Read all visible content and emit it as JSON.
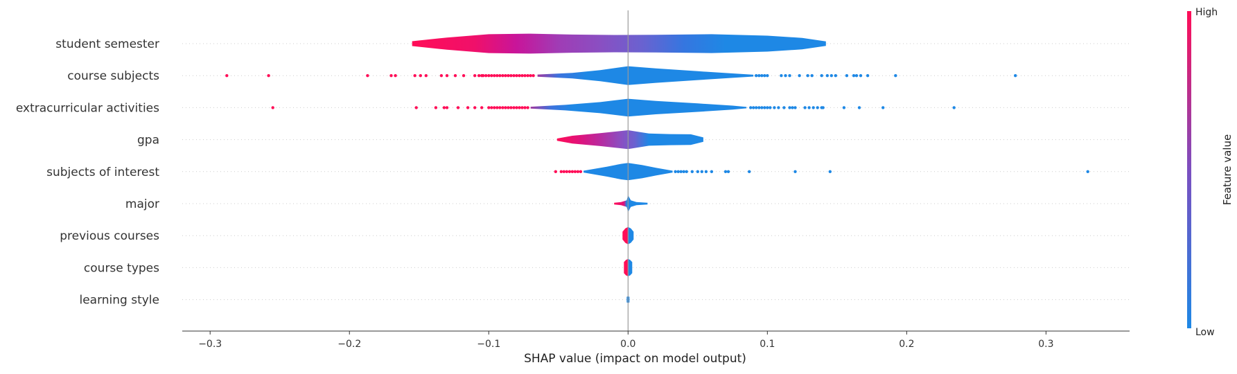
{
  "chart_data": {
    "type": "violin",
    "title": "",
    "xlabel": "SHAP value (impact on model output)",
    "xlim": [
      -0.32,
      0.36
    ],
    "xticks": [
      -0.3,
      -0.2,
      -0.1,
      0.0,
      0.1,
      0.2,
      0.3
    ],
    "xtick_labels": [
      "−0.3",
      "−0.2",
      "−0.1",
      "0.0",
      "0.1",
      "0.2",
      "0.3"
    ],
    "grid": "dotted-row-lines",
    "colorbar": {
      "title": "Feature value",
      "high_label": "High",
      "low_label": "Low",
      "high_color": "#ff0d57",
      "mid_color": "#7b4fc0",
      "low_color": "#1e88e5",
      "placement": "right"
    },
    "features": [
      {
        "name": "student semester",
        "range": [
          -0.155,
          0.142
        ],
        "profile": [
          [
            -0.155,
            0.22
          ],
          [
            -0.13,
            0.55
          ],
          [
            -0.1,
            0.85
          ],
          [
            -0.07,
            0.9
          ],
          [
            -0.04,
            0.82
          ],
          [
            -0.01,
            0.78
          ],
          [
            0.02,
            0.8
          ],
          [
            0.06,
            0.85
          ],
          [
            0.1,
            0.72
          ],
          [
            0.125,
            0.52
          ],
          [
            0.142,
            0.2
          ]
        ],
        "color_stops": [
          [
            -0.155,
            "#ff0d57"
          ],
          [
            -0.11,
            "#f0106a"
          ],
          [
            -0.08,
            "#c8159a"
          ],
          [
            -0.05,
            "#a03cb5"
          ],
          [
            -0.02,
            "#8a4fc2"
          ],
          [
            0.01,
            "#6a62d0"
          ],
          [
            0.04,
            "#3576e0"
          ],
          [
            0.07,
            "#1e88e5"
          ],
          [
            0.142,
            "#1e88e5"
          ]
        ],
        "points": []
      },
      {
        "name": "course subjects",
        "range": [
          -0.065,
          0.09
        ],
        "profile": [
          [
            -0.065,
            0.1
          ],
          [
            -0.04,
            0.25
          ],
          [
            -0.02,
            0.5
          ],
          [
            0.0,
            0.85
          ],
          [
            0.02,
            0.65
          ],
          [
            0.05,
            0.4
          ],
          [
            0.075,
            0.2
          ],
          [
            0.09,
            0.08
          ]
        ],
        "color_stops": [
          [
            -0.065,
            "#a0389f"
          ],
          [
            -0.05,
            "#3d72dd"
          ],
          [
            -0.03,
            "#1e88e5"
          ],
          [
            0.09,
            "#1e88e5"
          ]
        ],
        "points": [
          -0.288,
          -0.258,
          -0.187,
          -0.17,
          -0.167,
          -0.153,
          -0.149,
          -0.145,
          -0.134,
          -0.13,
          -0.124,
          -0.118,
          -0.11,
          -0.107,
          -0.105,
          -0.104,
          -0.102,
          -0.1,
          -0.098,
          -0.096,
          -0.094,
          -0.092,
          -0.09,
          -0.088,
          -0.086,
          -0.084,
          -0.082,
          -0.08,
          -0.078,
          -0.076,
          -0.074,
          -0.072,
          -0.07,
          -0.068,
          0.092,
          0.094,
          0.096,
          0.098,
          0.1,
          0.11,
          0.113,
          0.116,
          0.123,
          0.129,
          0.132,
          0.139,
          0.143,
          0.146,
          0.149,
          0.157,
          0.162,
          0.164,
          0.167,
          0.172,
          0.192,
          0.278
        ]
      },
      {
        "name": "extracurricular activities",
        "range": [
          -0.07,
          0.085
        ],
        "profile": [
          [
            -0.07,
            0.08
          ],
          [
            -0.045,
            0.25
          ],
          [
            -0.02,
            0.5
          ],
          [
            0.0,
            0.8
          ],
          [
            0.02,
            0.6
          ],
          [
            0.05,
            0.38
          ],
          [
            0.075,
            0.18
          ],
          [
            0.085,
            0.06
          ]
        ],
        "color_stops": [
          [
            -0.07,
            "#a0389f"
          ],
          [
            -0.055,
            "#3d72dd"
          ],
          [
            -0.04,
            "#1e88e5"
          ],
          [
            0.085,
            "#1e88e5"
          ]
        ],
        "points": [
          -0.255,
          -0.152,
          -0.138,
          -0.132,
          -0.13,
          -0.122,
          -0.115,
          -0.11,
          -0.105,
          -0.1,
          -0.098,
          -0.096,
          -0.094,
          -0.092,
          -0.09,
          -0.088,
          -0.086,
          -0.084,
          -0.082,
          -0.08,
          -0.078,
          -0.076,
          -0.074,
          -0.072,
          0.088,
          0.09,
          0.092,
          0.094,
          0.096,
          0.098,
          0.1,
          0.102,
          0.105,
          0.108,
          0.112,
          0.116,
          0.118,
          0.12,
          0.127,
          0.13,
          0.133,
          0.136,
          0.139,
          0.14,
          0.155,
          0.166,
          0.183,
          0.234
        ]
      },
      {
        "name": "gpa",
        "range": [
          -0.051,
          0.054
        ],
        "profile": [
          [
            -0.051,
            0.1
          ],
          [
            -0.04,
            0.35
          ],
          [
            -0.02,
            0.58
          ],
          [
            0.0,
            0.85
          ],
          [
            0.015,
            0.55
          ],
          [
            0.03,
            0.5
          ],
          [
            0.045,
            0.48
          ],
          [
            0.054,
            0.2
          ]
        ],
        "color_stops": [
          [
            -0.051,
            "#ff0d57"
          ],
          [
            -0.035,
            "#e0127a"
          ],
          [
            -0.02,
            "#b82a9f"
          ],
          [
            -0.005,
            "#8a4fc2"
          ],
          [
            0.005,
            "#6a62d0"
          ],
          [
            0.015,
            "#1e88e5"
          ],
          [
            0.054,
            "#1e88e5"
          ]
        ],
        "points": []
      },
      {
        "name": "subjects of interest",
        "range": [
          -0.032,
          0.032
        ],
        "profile": [
          [
            -0.032,
            0.08
          ],
          [
            -0.015,
            0.45
          ],
          [
            -0.005,
            0.7
          ],
          [
            0.0,
            0.78
          ],
          [
            0.01,
            0.6
          ],
          [
            0.02,
            0.35
          ],
          [
            0.032,
            0.08
          ]
        ],
        "color_stops": [
          [
            -0.032,
            "#1e88e5"
          ],
          [
            0.032,
            "#1e88e5"
          ]
        ],
        "points": [
          -0.052,
          -0.048,
          -0.046,
          -0.044,
          -0.042,
          -0.04,
          -0.038,
          -0.036,
          -0.034,
          0.034,
          0.036,
          0.038,
          0.04,
          0.042,
          0.046,
          0.05,
          0.053,
          0.056,
          0.06,
          0.07,
          0.072,
          0.087,
          0.12,
          0.145,
          0.33
        ]
      },
      {
        "name": "major",
        "range": [
          -0.01,
          0.014
        ],
        "profile": [
          [
            -0.01,
            0.08
          ],
          [
            -0.005,
            0.14
          ],
          [
            -0.001,
            0.3
          ],
          [
            0.0,
            0.75
          ],
          [
            0.002,
            0.3
          ],
          [
            0.006,
            0.14
          ],
          [
            0.014,
            0.08
          ]
        ],
        "color_stops": [
          [
            -0.01,
            "#ff0d57"
          ],
          [
            -0.003,
            "#e0127a"
          ],
          [
            -0.001,
            "#1e88e5"
          ],
          [
            0.014,
            "#1e88e5"
          ]
        ],
        "points": []
      },
      {
        "name": "previous courses",
        "range": [
          -0.004,
          0.004
        ],
        "profile": [
          [
            -0.004,
            0.35
          ],
          [
            -0.002,
            0.65
          ],
          [
            0.0,
            0.78
          ],
          [
            0.002,
            0.65
          ],
          [
            0.004,
            0.35
          ]
        ],
        "color_stops": [
          [
            -0.004,
            "#ff0d57"
          ],
          [
            -0.0005,
            "#ff0d57"
          ],
          [
            0.0005,
            "#1e88e5"
          ],
          [
            0.004,
            "#1e88e5"
          ]
        ],
        "points": []
      },
      {
        "name": "course types",
        "range": [
          -0.003,
          0.003
        ],
        "profile": [
          [
            -0.003,
            0.5
          ],
          [
            -0.0015,
            0.7
          ],
          [
            0.0,
            0.78
          ],
          [
            0.0015,
            0.7
          ],
          [
            0.003,
            0.5
          ]
        ],
        "color_stops": [
          [
            -0.003,
            "#ff0d57"
          ],
          [
            -0.0005,
            "#ff0d57"
          ],
          [
            0.0005,
            "#1e88e5"
          ],
          [
            0.003,
            "#1e88e5"
          ]
        ],
        "points": []
      },
      {
        "name": "learning style",
        "range": [
          -0.001,
          0.001
        ],
        "profile": [
          [
            -0.001,
            0.25
          ],
          [
            0.0,
            0.3
          ],
          [
            0.001,
            0.25
          ]
        ],
        "color_stops": [
          [
            -0.001,
            "#1e88e5"
          ],
          [
            0.001,
            "#1e88e5"
          ]
        ],
        "points": []
      }
    ]
  }
}
